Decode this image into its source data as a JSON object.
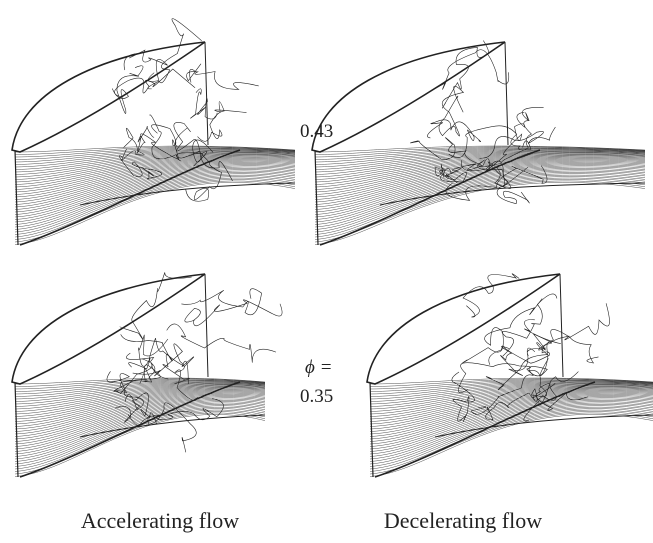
{
  "labels": {
    "top_value": "0.43",
    "phi": "ϕ =",
    "bottom_value": "0.35"
  },
  "captions": [
    "Accelerating flow",
    "Decelerating flow"
  ]
}
